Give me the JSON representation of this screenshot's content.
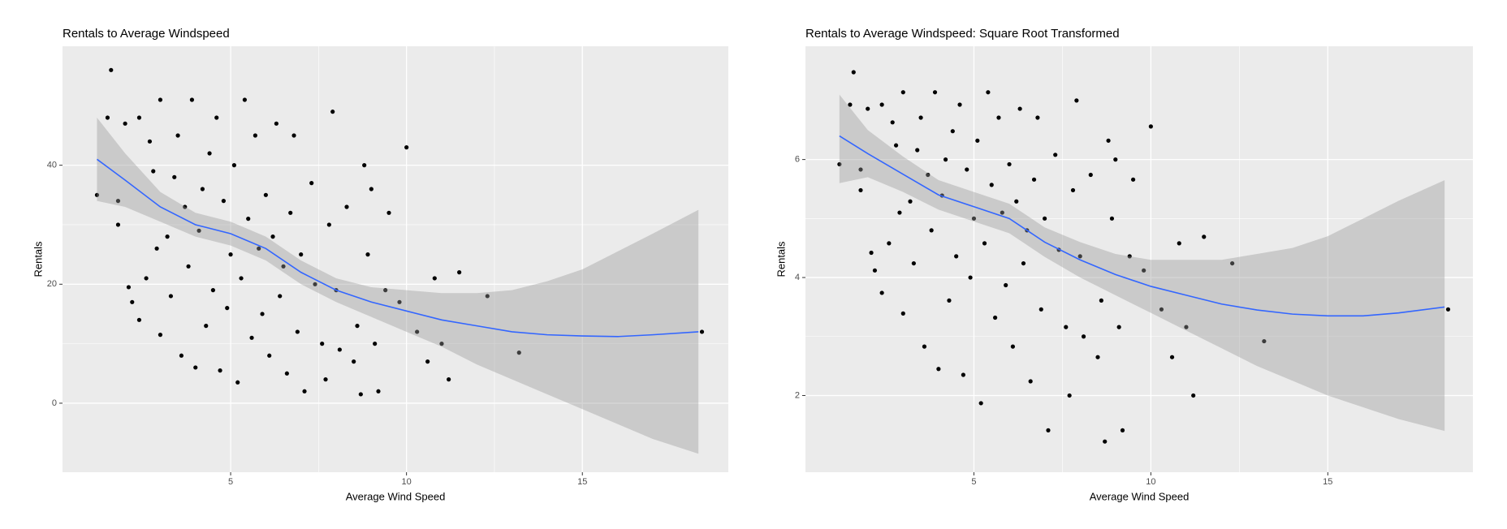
{
  "chart_data": [
    {
      "type": "scatter",
      "title": "Rentals to Average Windspeed",
      "x_label": "Average Wind Speed",
      "y_label": "Rentals",
      "xlim": [
        0.22,
        19.15
      ],
      "ylim": [
        -11.6,
        60
      ],
      "xticks": [
        5,
        10,
        15
      ],
      "yticks": [
        0,
        20,
        40
      ],
      "grid": true,
      "color": "#000000",
      "x": [
        1.2,
        1.5,
        1.6,
        1.8,
        1.8,
        2.0,
        2.1,
        2.2,
        2.4,
        2.4,
        2.6,
        2.7,
        2.8,
        2.9,
        3.0,
        3.0,
        3.2,
        3.3,
        3.4,
        3.5,
        3.6,
        3.7,
        3.8,
        3.9,
        4.0,
        4.1,
        4.2,
        4.3,
        4.4,
        4.5,
        4.6,
        4.7,
        4.8,
        4.9,
        5.0,
        5.1,
        5.2,
        5.3,
        5.4,
        5.5,
        5.6,
        5.7,
        5.8,
        5.9,
        6.0,
        6.1,
        6.2,
        6.3,
        6.4,
        6.5,
        6.6,
        6.7,
        6.8,
        6.9,
        7.0,
        7.1,
        7.3,
        7.4,
        7.6,
        7.7,
        7.8,
        7.9,
        8.0,
        8.1,
        8.3,
        8.5,
        8.6,
        8.7,
        8.8,
        8.9,
        9.0,
        9.1,
        9.2,
        9.4,
        9.5,
        9.8,
        10.0,
        10.3,
        10.6,
        10.8,
        11.0,
        11.2,
        11.5,
        12.3,
        13.2,
        18.4
      ],
      "values": [
        35,
        48,
        56,
        34,
        30,
        47,
        19.5,
        17,
        14,
        48,
        21,
        44,
        39,
        26,
        11.5,
        51,
        28,
        18,
        38,
        45,
        8,
        33,
        23,
        51,
        6,
        29,
        36,
        13,
        42,
        19,
        48,
        5.5,
        34,
        16,
        25,
        40,
        3.5,
        21,
        51,
        31,
        11,
        45,
        26,
        15,
        35,
        8,
        28,
        47,
        18,
        23,
        5,
        32,
        45,
        12,
        25,
        2,
        37,
        20,
        10,
        4,
        30,
        49,
        19,
        9,
        33,
        7,
        13,
        1.5,
        40,
        25,
        36,
        10,
        2,
        19,
        32,
        17,
        43,
        12,
        7,
        21,
        10,
        4,
        22,
        18,
        8.5,
        12
      ],
      "smooth": {
        "color": "#3366ff",
        "band_color": "#999999",
        "x": [
          1.2,
          2,
          3,
          4,
          5,
          6,
          7,
          8,
          9,
          10,
          11,
          12,
          13,
          14,
          15,
          16,
          17,
          18.3
        ],
        "values": [
          41,
          37.5,
          33,
          30,
          28.5,
          26,
          22,
          19,
          17,
          15.5,
          14,
          13,
          12,
          11.5,
          11.3,
          11.2,
          11.5,
          12
        ],
        "lower": [
          34,
          33,
          30.5,
          28,
          26.5,
          24,
          20,
          17,
          14.5,
          12,
          9.5,
          6.5,
          4,
          1.5,
          -1,
          -3.5,
          -6,
          -8.5
        ],
        "upper": [
          48,
          42,
          35.5,
          32,
          30.5,
          28,
          24,
          21,
          19.5,
          19,
          18.5,
          18.5,
          19,
          20.5,
          22.5,
          25.5,
          28.5,
          32.5
        ]
      }
    },
    {
      "type": "scatter",
      "title": "Rentals to Average Windspeed: Square Root Transformed",
      "x_label": "Average Wind Speed",
      "y_label": "Rentals",
      "xlim": [
        0.24,
        19.1
      ],
      "ylim": [
        0.7,
        7.92
      ],
      "xticks": [
        5,
        10,
        15
      ],
      "yticks": [
        2,
        4,
        6
      ],
      "grid": true,
      "color": "#000000",
      "x": [
        1.2,
        1.5,
        1.6,
        1.8,
        1.8,
        2.0,
        2.1,
        2.2,
        2.4,
        2.4,
        2.6,
        2.7,
        2.8,
        2.9,
        3.0,
        3.0,
        3.2,
        3.3,
        3.4,
        3.5,
        3.6,
        3.7,
        3.8,
        3.9,
        4.0,
        4.1,
        4.2,
        4.3,
        4.4,
        4.5,
        4.6,
        4.7,
        4.8,
        4.9,
        5.0,
        5.1,
        5.2,
        5.3,
        5.4,
        5.5,
        5.6,
        5.7,
        5.8,
        5.9,
        6.0,
        6.1,
        6.2,
        6.3,
        6.4,
        6.5,
        6.6,
        6.7,
        6.8,
        6.9,
        7.0,
        7.1,
        7.3,
        7.4,
        7.6,
        7.7,
        7.8,
        7.9,
        8.0,
        8.1,
        8.3,
        8.5,
        8.6,
        8.7,
        8.8,
        8.9,
        9.0,
        9.1,
        9.2,
        9.4,
        9.5,
        9.8,
        10.0,
        10.3,
        10.6,
        10.8,
        11.0,
        11.2,
        11.5,
        12.3,
        13.2,
        18.4
      ],
      "values": [
        5.92,
        6.93,
        7.48,
        5.83,
        5.48,
        6.86,
        4.42,
        4.12,
        3.74,
        6.93,
        4.58,
        6.63,
        6.24,
        5.1,
        3.39,
        7.14,
        5.29,
        4.24,
        6.16,
        6.71,
        2.83,
        5.74,
        4.8,
        7.14,
        2.45,
        5.39,
        6.0,
        3.61,
        6.48,
        4.36,
        6.93,
        2.35,
        5.83,
        4.0,
        5.0,
        6.32,
        1.87,
        4.58,
        7.14,
        5.57,
        3.32,
        6.71,
        5.1,
        3.87,
        5.92,
        2.83,
        5.29,
        6.86,
        4.24,
        4.8,
        2.24,
        5.66,
        6.71,
        3.46,
        5.0,
        1.41,
        6.08,
        4.47,
        3.16,
        2.0,
        5.48,
        7.0,
        4.36,
        3.0,
        5.74,
        2.65,
        3.61,
        1.22,
        6.32,
        5.0,
        6.0,
        3.16,
        1.41,
        4.36,
        5.66,
        4.12,
        6.56,
        3.46,
        2.65,
        4.58,
        3.16,
        2.0,
        4.69,
        4.24,
        2.92,
        3.46
      ],
      "smooth": {
        "color": "#3366ff",
        "band_color": "#999999",
        "x": [
          1.2,
          2,
          3,
          4,
          5,
          6,
          7,
          8,
          9,
          10,
          11,
          12,
          13,
          14,
          15,
          16,
          17,
          18.3
        ],
        "values": [
          6.4,
          6.1,
          5.75,
          5.4,
          5.2,
          5.0,
          4.6,
          4.3,
          4.05,
          3.85,
          3.7,
          3.55,
          3.45,
          3.38,
          3.35,
          3.35,
          3.4,
          3.5
        ],
        "lower": [
          5.6,
          5.7,
          5.45,
          5.15,
          4.95,
          4.75,
          4.35,
          4.0,
          3.7,
          3.4,
          3.1,
          2.8,
          2.5,
          2.25,
          2.0,
          1.8,
          1.6,
          1.4
        ],
        "upper": [
          7.1,
          6.5,
          6.05,
          5.65,
          5.45,
          5.25,
          4.85,
          4.6,
          4.4,
          4.3,
          4.3,
          4.3,
          4.4,
          4.5,
          4.7,
          5.0,
          5.3,
          5.65
        ]
      }
    }
  ]
}
